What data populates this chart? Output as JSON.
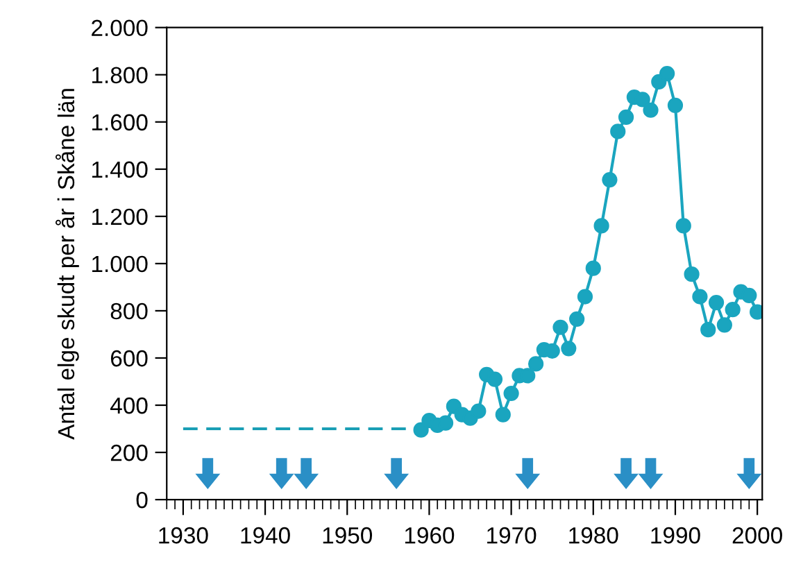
{
  "chart_data": {
    "type": "line",
    "ylabel": "Antal elge skudt per år i Skåne län",
    "xlim": [
      1928,
      2000.6
    ],
    "xticks": [
      1930,
      1940,
      1950,
      1960,
      1970,
      1980,
      1990,
      2000
    ],
    "ylim": [
      0,
      2000
    ],
    "yticks": [
      0,
      200,
      400,
      600,
      800,
      {
        "value": 1000,
        "label": "1.000"
      },
      {
        "value": 1200,
        "label": "1.200"
      },
      {
        "value": 1400,
        "label": "1.400"
      },
      {
        "value": 1600,
        "label": "1.600"
      },
      {
        "value": 1800,
        "label": "1.800"
      },
      {
        "value": 2000,
        "label": "2.000"
      }
    ],
    "grid": false,
    "series": [
      {
        "color": "#1a9fb5",
        "marker": "none",
        "line_style": "dashed",
        "x": [
          1930,
          1959
        ],
        "values": [
          300,
          300
        ]
      },
      {
        "color": "#1aa5bf",
        "marker": "circle",
        "line_style": "solid",
        "x": [
          1959,
          1960,
          1961,
          1962,
          1963,
          1964,
          1965,
          1966,
          1967,
          1968,
          1969,
          1970,
          1971,
          1972,
          1973,
          1974,
          1975,
          1976,
          1977,
          1978,
          1979,
          1980,
          1981,
          1982,
          1983,
          1984,
          1985,
          1986,
          1987,
          1988,
          1989,
          1990,
          1991,
          1992,
          1993,
          1994,
          1995,
          1996,
          1997,
          1998,
          1999,
          2000
        ],
        "values": [
          295,
          335,
          315,
          325,
          395,
          360,
          345,
          375,
          530,
          510,
          360,
          450,
          525,
          525,
          575,
          635,
          630,
          730,
          640,
          765,
          860,
          980,
          1160,
          1355,
          1560,
          1620,
          1705,
          1695,
          1650,
          1770,
          1805,
          1670,
          1160,
          955,
          860,
          720,
          835,
          740,
          805,
          880,
          865,
          795
        ]
      },
      {
        "type": "scatter",
        "color": "#2a8fc6",
        "marker": "triangle",
        "x": [
          1933,
          1942,
          1945,
          1956,
          1972,
          1984,
          1987,
          1999
        ],
        "values": [
          110,
          110,
          110,
          110,
          110,
          110,
          110,
          110
        ]
      }
    ]
  }
}
